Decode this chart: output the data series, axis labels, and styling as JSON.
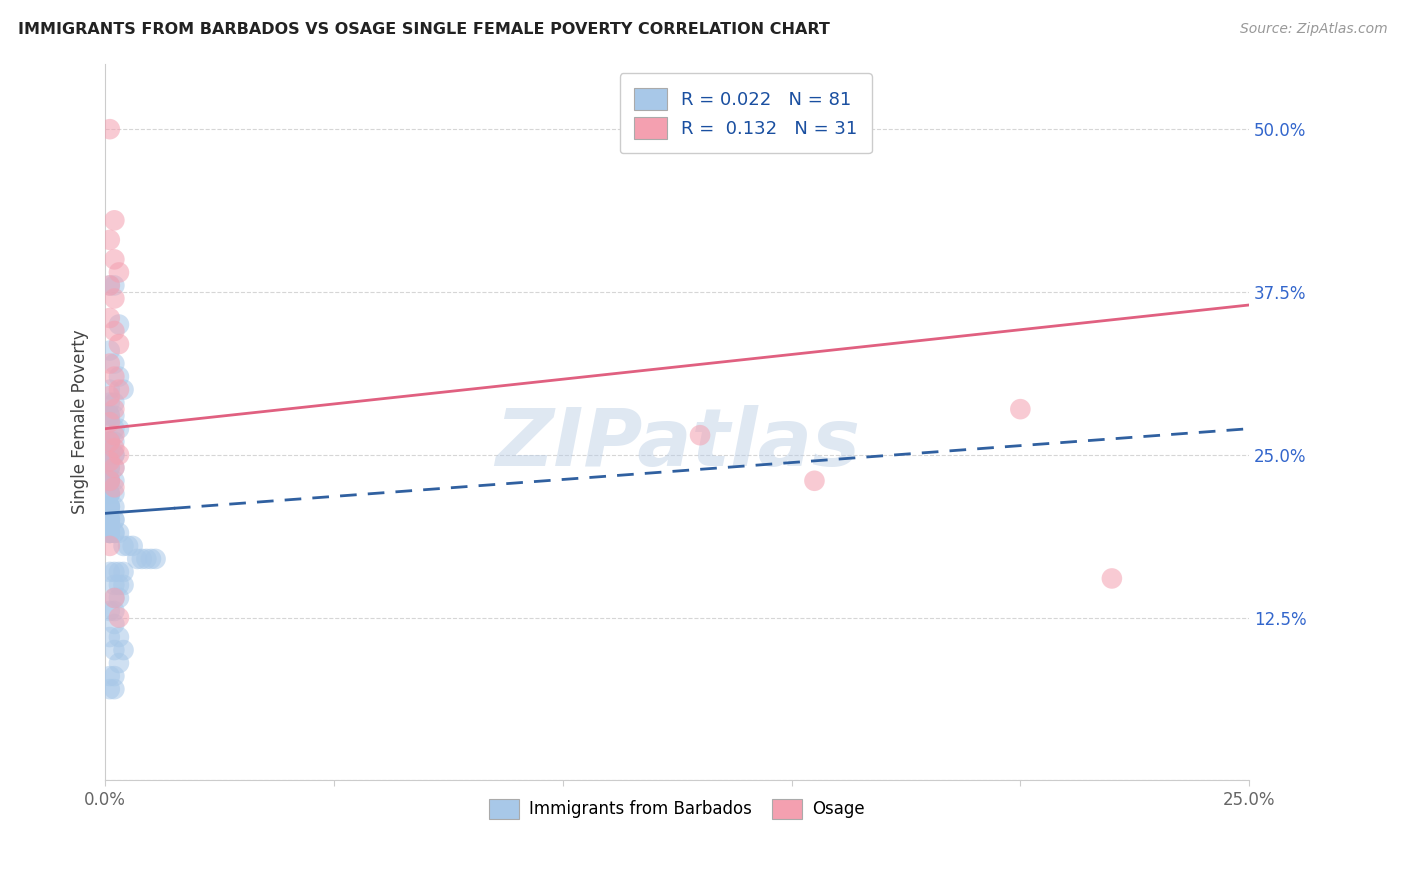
{
  "title": "IMMIGRANTS FROM BARBADOS VS OSAGE SINGLE FEMALE POVERTY CORRELATION CHART",
  "source": "Source: ZipAtlas.com",
  "ylabel": "Single Female Poverty",
  "xlim": [
    0.0,
    0.25
  ],
  "ylim": [
    0.0,
    0.55
  ],
  "yticks": [
    0.0,
    0.125,
    0.25,
    0.375,
    0.5
  ],
  "ytick_labels": [
    "",
    "12.5%",
    "25.0%",
    "37.5%",
    "50.0%"
  ],
  "xticks": [
    0.0,
    0.05,
    0.1,
    0.15,
    0.2,
    0.25
  ],
  "xtick_labels": [
    "0.0%",
    "",
    "",
    "",
    "",
    "25.0%"
  ],
  "blue_fill": "#a8c8e8",
  "pink_fill": "#f4a0b0",
  "blue_line_color": "#3060a0",
  "pink_line_color": "#e06080",
  "r_blue": 0.022,
  "n_blue": 81,
  "r_pink": 0.132,
  "n_pink": 31,
  "legend_text_color": "#1a4fa0",
  "watermark": "ZIPatlas",
  "grid_color": "#cccccc",
  "blue_line_y0": 0.205,
  "blue_line_y1": 0.27,
  "pink_line_y0": 0.27,
  "pink_line_y1": 0.365,
  "blue_x": [
    0.001,
    0.002,
    0.003,
    0.001,
    0.002,
    0.003,
    0.004,
    0.001,
    0.002,
    0.001,
    0.001,
    0.002,
    0.001,
    0.002,
    0.003,
    0.001,
    0.001,
    0.002,
    0.001,
    0.002,
    0.001,
    0.001,
    0.002,
    0.001,
    0.002,
    0.001,
    0.001,
    0.001,
    0.001,
    0.002,
    0.001,
    0.001,
    0.002,
    0.001,
    0.001,
    0.001,
    0.001,
    0.001,
    0.002,
    0.001,
    0.002,
    0.001,
    0.001,
    0.001,
    0.002,
    0.001,
    0.002,
    0.001,
    0.001,
    0.001,
    0.002,
    0.003,
    0.004,
    0.005,
    0.006,
    0.007,
    0.008,
    0.009,
    0.01,
    0.011,
    0.001,
    0.002,
    0.003,
    0.004,
    0.002,
    0.003,
    0.004,
    0.002,
    0.003,
    0.002,
    0.001,
    0.002,
    0.001,
    0.003,
    0.002,
    0.004,
    0.003,
    0.002,
    0.001,
    0.001,
    0.002
  ],
  "blue_y": [
    0.38,
    0.38,
    0.35,
    0.33,
    0.32,
    0.31,
    0.3,
    0.3,
    0.29,
    0.29,
    0.28,
    0.28,
    0.28,
    0.27,
    0.27,
    0.26,
    0.26,
    0.26,
    0.26,
    0.25,
    0.25,
    0.25,
    0.25,
    0.24,
    0.24,
    0.24,
    0.23,
    0.23,
    0.23,
    0.23,
    0.22,
    0.22,
    0.22,
    0.22,
    0.21,
    0.21,
    0.21,
    0.21,
    0.21,
    0.2,
    0.2,
    0.2,
    0.2,
    0.2,
    0.2,
    0.19,
    0.19,
    0.19,
    0.19,
    0.19,
    0.19,
    0.19,
    0.18,
    0.18,
    0.18,
    0.17,
    0.17,
    0.17,
    0.17,
    0.17,
    0.16,
    0.16,
    0.16,
    0.16,
    0.15,
    0.15,
    0.15,
    0.14,
    0.14,
    0.13,
    0.13,
    0.12,
    0.11,
    0.11,
    0.1,
    0.1,
    0.09,
    0.08,
    0.08,
    0.07,
    0.07
  ],
  "pink_x": [
    0.001,
    0.002,
    0.001,
    0.002,
    0.003,
    0.001,
    0.002,
    0.001,
    0.002,
    0.003,
    0.001,
    0.002,
    0.003,
    0.001,
    0.002,
    0.001,
    0.002,
    0.001,
    0.002,
    0.003,
    0.001,
    0.002,
    0.001,
    0.002,
    0.001,
    0.002,
    0.003,
    0.13,
    0.155,
    0.2,
    0.22
  ],
  "pink_y": [
    0.5,
    0.43,
    0.415,
    0.4,
    0.39,
    0.38,
    0.37,
    0.355,
    0.345,
    0.335,
    0.32,
    0.31,
    0.3,
    0.295,
    0.285,
    0.275,
    0.265,
    0.26,
    0.255,
    0.25,
    0.245,
    0.24,
    0.23,
    0.225,
    0.18,
    0.14,
    0.125,
    0.265,
    0.23,
    0.285,
    0.155
  ]
}
